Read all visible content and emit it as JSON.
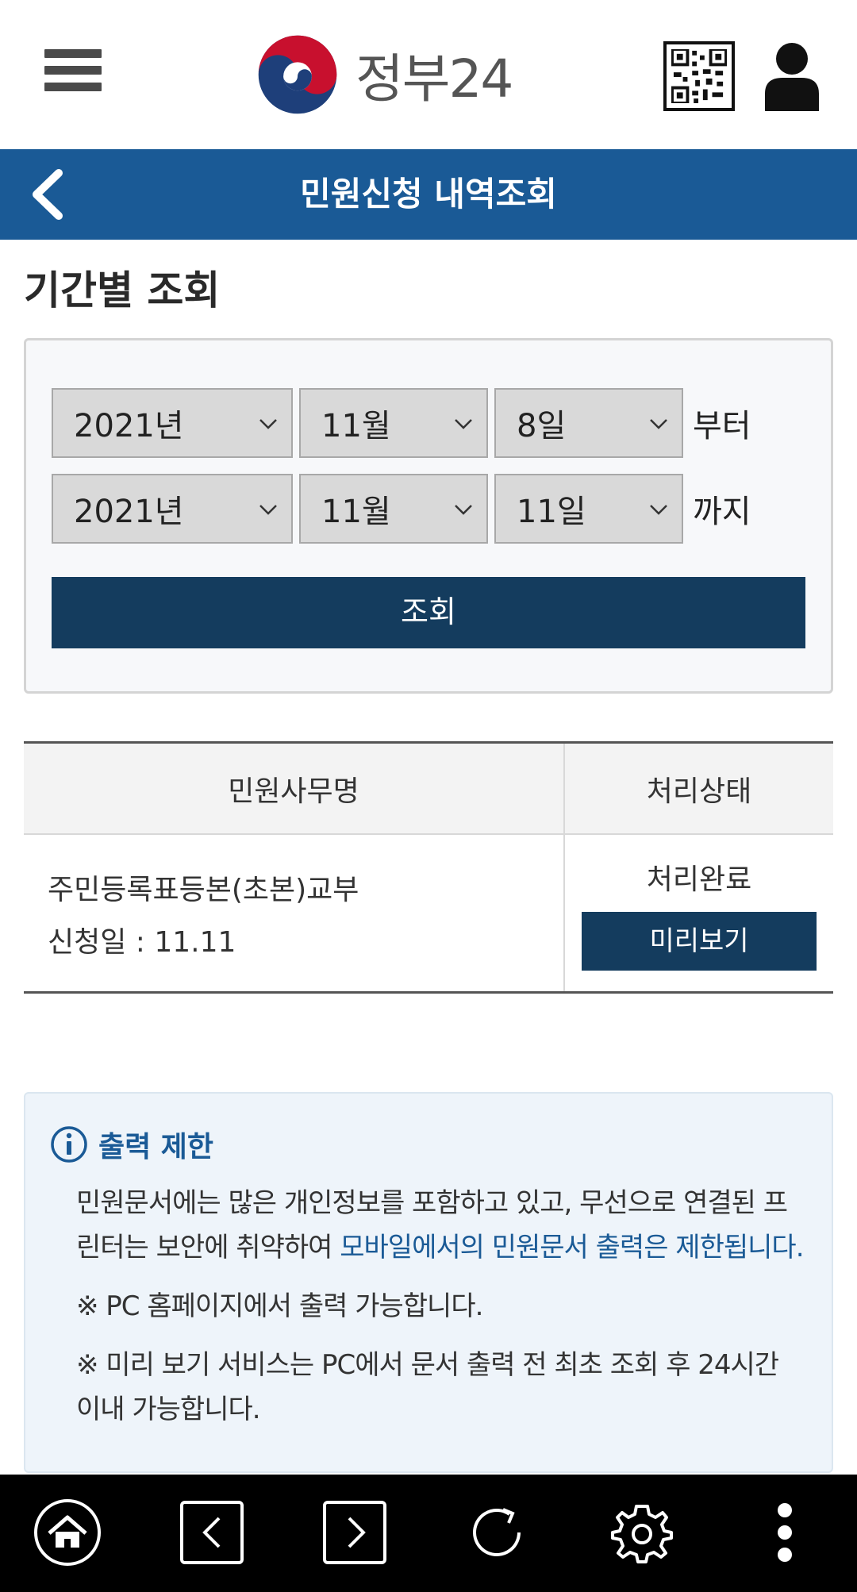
{
  "header": {
    "logo_text": "정부24",
    "menu_icon": "hamburger-menu-icon",
    "qr_icon": "qr-code-icon",
    "user_icon": "user-icon"
  },
  "titlebar": {
    "title": "민원신청 내역조회",
    "back_icon": "chevron-left-icon",
    "color": "#1a5a96"
  },
  "search": {
    "section_title": "기간별 조회",
    "from": {
      "year": "2021년",
      "month": "11월",
      "day": "8일",
      "suffix": "부터"
    },
    "to": {
      "year": "2021년",
      "month": "11월",
      "day": "11일",
      "suffix": "까지"
    },
    "query_label": "조회"
  },
  "table": {
    "headers": [
      "민원사무명",
      "처리상태"
    ],
    "rows": [
      {
        "name": "주민등록표등본(초본)교부",
        "date": "신청일 : 11.11",
        "status": "처리완료",
        "action_label": "미리보기"
      }
    ]
  },
  "notice": {
    "icon": "info-icon",
    "title": "출력 제한",
    "body_plain": "민원문서에는 많은 개인정보를 포함하고 있고, 무선으로 연결된 프린터는 보안에 취약하여 ",
    "body_highlight": "모바일에서의 민원문서 출력은 제한됩니다.",
    "note1": "※ PC 홈페이지에서 출력 가능합니다.",
    "note2": "※ 미리 보기 서비스는 PC에서 문서 출력 전 최초 조회 후 24시간 이내 가능합니다."
  },
  "bottom_nav": {
    "items": [
      "home-icon",
      "back-arrow-icon",
      "forward-arrow-icon",
      "refresh-icon",
      "settings-icon",
      "more-vertical-icon"
    ]
  },
  "colors": {
    "primary": "#1a5a96",
    "button_dark": "#143c5e"
  }
}
